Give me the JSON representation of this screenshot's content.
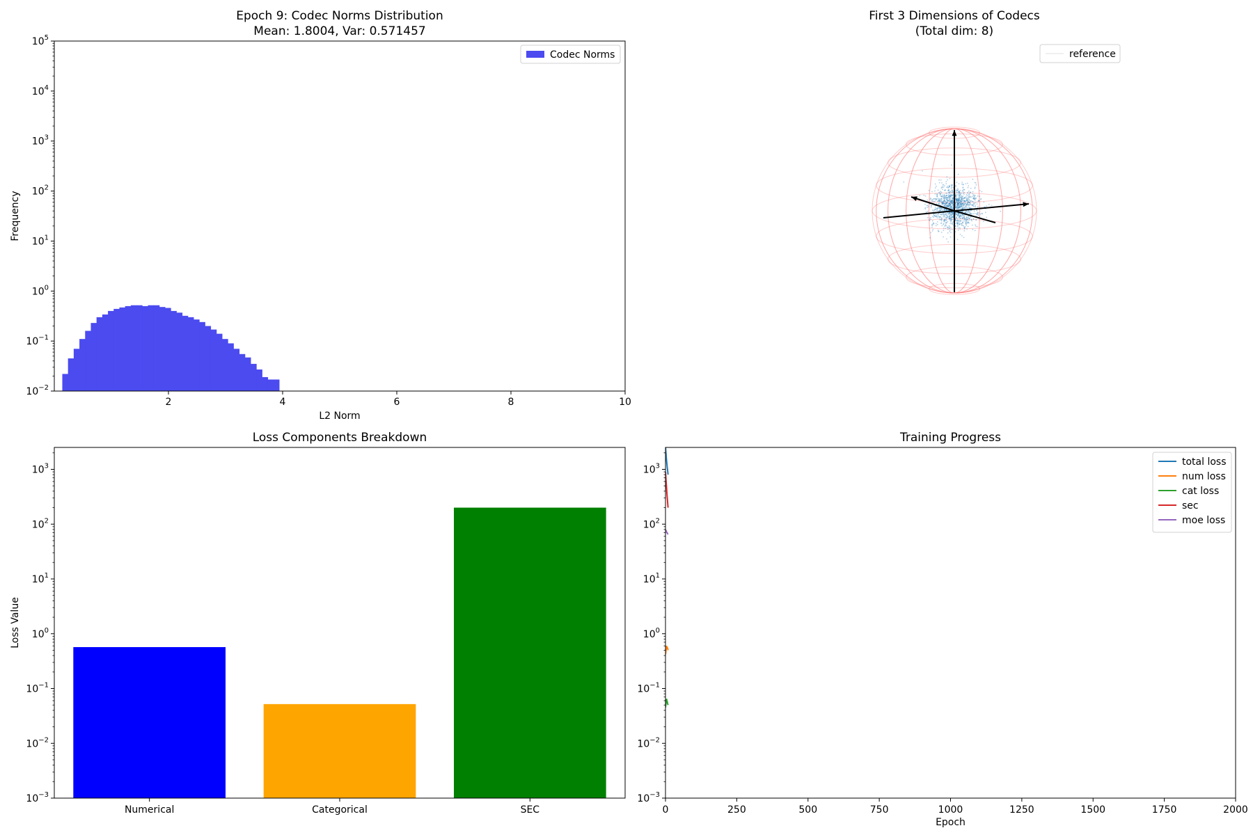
{
  "chart_data": [
    {
      "id": "hist",
      "type": "bar",
      "title": [
        "Epoch 9: Codec Norms Distribution",
        "Mean: 1.8004, Var: 0.571457"
      ],
      "xlabel": "L2 Norm",
      "ylabel": "Frequency",
      "xlim": [
        0.0,
        10
      ],
      "ylim_exp": [
        -2,
        5
      ],
      "yscale": "log",
      "xticks": [
        {
          "v": 2,
          "label": "2"
        },
        {
          "v": 4,
          "label": "4"
        },
        {
          "v": 6,
          "label": "6"
        },
        {
          "v": 8,
          "label": "8"
        },
        {
          "v": 10,
          "label": "10"
        }
      ],
      "yticks": [
        -2,
        -1,
        0,
        1,
        2,
        3,
        4,
        5
      ],
      "legend": [
        "Codec Norms"
      ],
      "color": "#4b4bf0",
      "bin_start": 0.14,
      "bin_width": 0.1,
      "values": [
        0.022,
        0.045,
        0.07,
        0.11,
        0.16,
        0.23,
        0.3,
        0.34,
        0.4,
        0.44,
        0.47,
        0.5,
        0.52,
        0.52,
        0.5,
        0.52,
        0.52,
        0.48,
        0.46,
        0.4,
        0.37,
        0.32,
        0.3,
        0.27,
        0.24,
        0.2,
        0.17,
        0.14,
        0.11,
        0.09,
        0.07,
        0.055,
        0.047,
        0.035,
        0.027,
        0.019,
        0.017,
        0.017
      ]
    },
    {
      "id": "sphere",
      "type": "scatter",
      "title": [
        "First 3 Dimensions of Codecs",
        "(Total dim: 8)"
      ],
      "legend": [
        "reference"
      ]
    },
    {
      "id": "loss",
      "type": "bar",
      "title": [
        "Loss Components Breakdown"
      ],
      "xlabel": "",
      "ylabel": "Loss Value",
      "yscale": "log",
      "ylim_exp": [
        -3,
        3.4
      ],
      "yticks": [
        -3,
        -2,
        -1,
        0,
        1,
        2,
        3
      ],
      "categories": [
        "Numerical",
        "Categorical",
        "SEC"
      ],
      "values": [
        0.57,
        0.052,
        200
      ],
      "colors": [
        "#0000ff",
        "#ffa500",
        "#008000"
      ]
    },
    {
      "id": "progress",
      "type": "line",
      "title": [
        "Training Progress"
      ],
      "xlabel": "Epoch",
      "ylabel": "",
      "yscale": "log",
      "xlim": [
        0,
        2000
      ],
      "ylim_exp": [
        -3,
        3.4
      ],
      "xticks": [
        {
          "v": 0,
          "label": "0"
        },
        {
          "v": 250,
          "label": "250"
        },
        {
          "v": 500,
          "label": "500"
        },
        {
          "v": 750,
          "label": "750"
        },
        {
          "v": 1000,
          "label": "1000"
        },
        {
          "v": 1250,
          "label": "1250"
        },
        {
          "v": 1500,
          "label": "1500"
        },
        {
          "v": 1750,
          "label": "1750"
        },
        {
          "v": 2000,
          "label": "2000"
        }
      ],
      "yticks": [
        -3,
        -2,
        -1,
        0,
        1,
        2,
        3
      ],
      "series": [
        {
          "name": "total loss",
          "color": "#1f77b4",
          "x": [
            0,
            1,
            2,
            3,
            4,
            5,
            6,
            7,
            8,
            9
          ],
          "values": [
            2600,
            2200,
            1900,
            1600,
            1400,
            1250,
            1100,
            1000,
            900,
            800
          ]
        },
        {
          "name": "num loss",
          "color": "#ff7f0e",
          "x": [
            0,
            1,
            2,
            3,
            4,
            5,
            6,
            7,
            8,
            9
          ],
          "values": [
            0.42,
            0.45,
            0.5,
            0.55,
            0.6,
            0.57,
            0.56,
            0.55,
            0.53,
            0.5
          ]
        },
        {
          "name": "cat loss",
          "color": "#2ca02c",
          "x": [
            0,
            1,
            2,
            3,
            4,
            5,
            6,
            7,
            8,
            9
          ],
          "values": [
            0.045,
            0.05,
            0.055,
            0.06,
            0.065,
            0.06,
            0.058,
            0.055,
            0.052,
            0.05
          ]
        },
        {
          "name": "sec",
          "color": "#d62728",
          "x": [
            0,
            1,
            2,
            3,
            4,
            5,
            6,
            7,
            8,
            9
          ],
          "values": [
            900,
            750,
            620,
            520,
            440,
            360,
            310,
            270,
            230,
            200
          ]
        },
        {
          "name": "moe loss",
          "color": "#9467bd",
          "x": [
            0,
            1,
            2,
            3,
            4,
            5,
            6,
            7,
            8,
            9
          ],
          "values": [
            80,
            78,
            76,
            74,
            72,
            70,
            69,
            68,
            66,
            65
          ]
        }
      ]
    }
  ]
}
